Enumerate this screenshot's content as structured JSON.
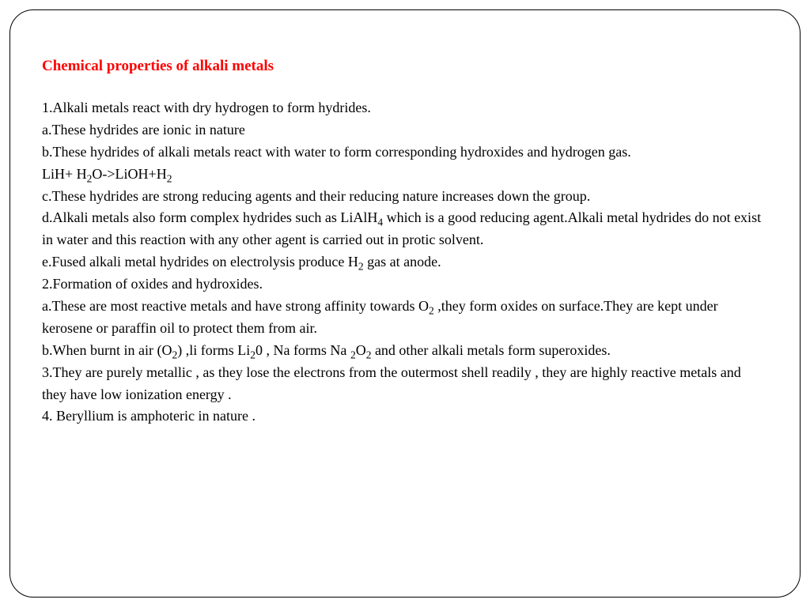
{
  "title": "Chemical properties of alkali metals",
  "lines": [
    "1.Alkali metals react with dry hydrogen to form hydrides.",
    "a.These hydrides are ionic in nature",
    "b.These hydrides of alkali metals react with water to form corresponding hydroxides and hydrogen gas.",
    "LiH+ H₂O->LiOH+H₂",
    "c.These hydrides are strong reducing agents and their reducing nature increases down the group.",
    "d.Alkali metals also form complex hydrides such as LiAlH₄ which is a good reducing agent.Alkali metal hydrides do not exist in water and this reaction with any other agent is carried out in protic solvent.",
    "e.Fused alkali metal hydrides on electrolysis produce H₂ gas at anode.",
    "2.Formation of oxides and hydroxides.",
    "a.These are most reactive metals and have strong affinity towards O₂ ,they form oxides on surface.They are kept under kerosene or paraffin oil to protect them from air.",
    "b.When burnt in air (O₂) ,li forms Li₂0 , Na forms Na ₂O₂ and other alkali metals form superoxides.",
    "3.They are purely metallic , as they lose the electrons from the outermost shell readily , they are highly reactive metals and they have low ionization energy .",
    "4. Beryllium is amphoteric in nature ."
  ],
  "style": {
    "title_color": "#ff0000",
    "text_color": "#000000",
    "background_color": "#ffffff",
    "border_color": "#000000",
    "title_fontsize": 19,
    "body_fontsize": 18,
    "border_radius": 30,
    "line_height": 1.55,
    "font_family": "Georgia, Times New Roman, serif"
  }
}
